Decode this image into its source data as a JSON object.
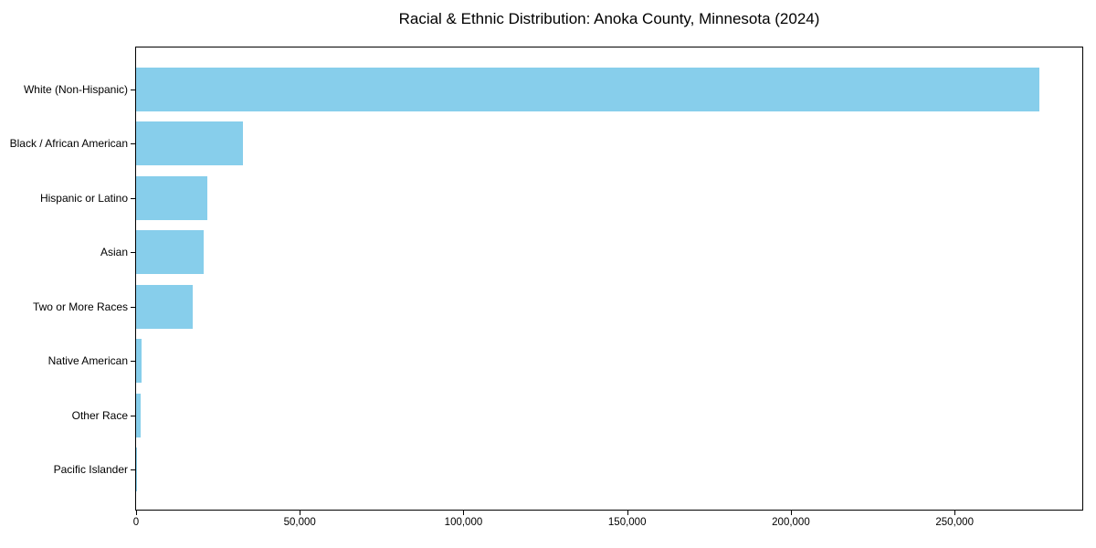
{
  "chart_data": {
    "type": "bar",
    "orientation": "horizontal",
    "title": "Racial & Ethnic Distribution: Anoka County, Minnesota (2024)",
    "categories": [
      "White (Non-Hispanic)",
      "Black / African American",
      "Hispanic or Latino",
      "Asian",
      "Two or More Races",
      "Native American",
      "Other Race",
      "Pacific Islander"
    ],
    "values": [
      276000,
      32600,
      21700,
      20600,
      17200,
      1600,
      1300,
      250
    ],
    "xlabel": "",
    "ylabel": "",
    "xlim": [
      0,
      289000
    ],
    "xticks": [
      0,
      50000,
      100000,
      150000,
      200000,
      250000
    ],
    "xtick_labels": [
      "0",
      "50,000",
      "100,000",
      "150,000",
      "200,000",
      "250,000"
    ],
    "bar_color": "#87CEEB",
    "grid": false,
    "legend": null
  }
}
